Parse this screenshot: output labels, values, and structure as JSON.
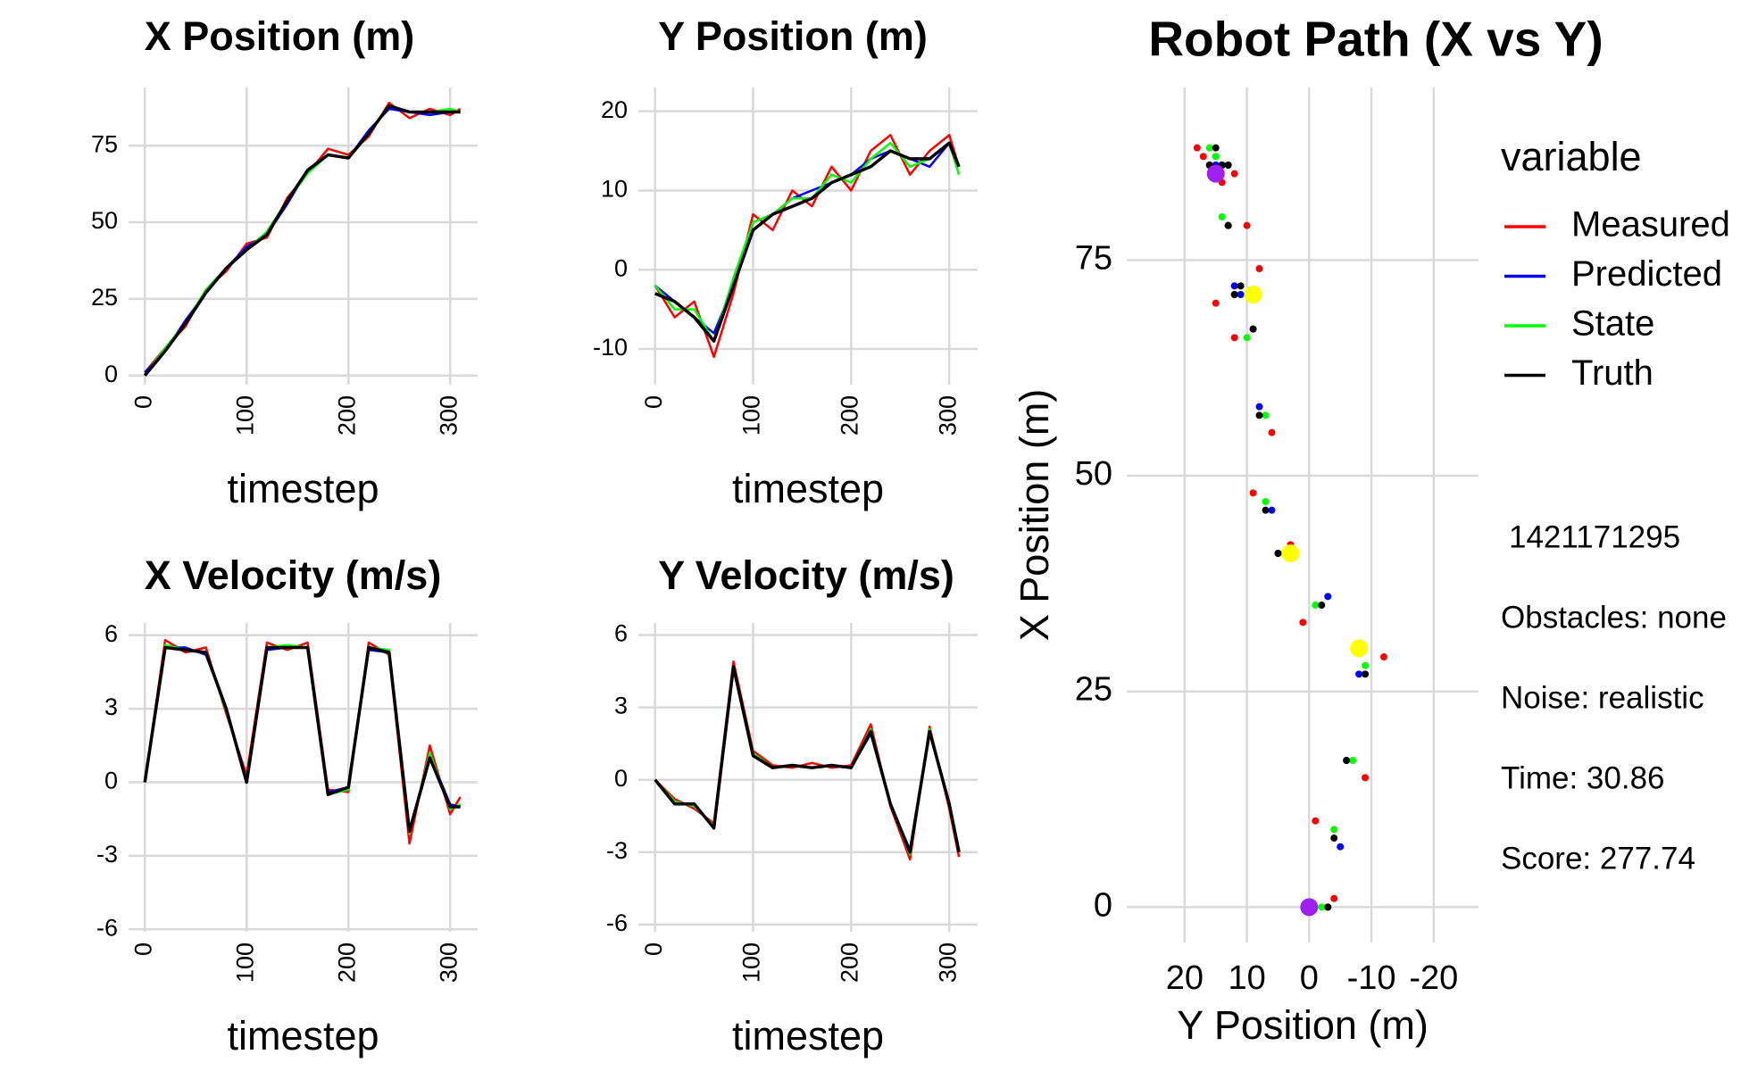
{
  "chart_data": [
    {
      "type": "line",
      "title": "X Position (m)",
      "x_label": "timestep",
      "x": [
        0,
        20,
        40,
        60,
        80,
        100,
        120,
        140,
        160,
        180,
        200,
        220,
        240,
        260,
        280,
        300,
        310
      ],
      "xlim": [
        -16,
        327
      ],
      "xticks": [
        0,
        100,
        200,
        300
      ],
      "ylim": [
        -3,
        94
      ],
      "yticks": [
        0,
        25,
        50,
        75
      ],
      "grid": true,
      "series": [
        {
          "name": "Measured",
          "color": "#ff0000",
          "values": [
            1,
            9,
            16,
            28,
            34,
            43,
            45,
            58,
            66,
            74,
            72,
            78,
            89,
            84,
            87,
            85,
            87
          ]
        },
        {
          "name": "Predicted",
          "color": "#0000ff",
          "values": [
            1,
            8,
            18,
            27,
            35,
            42,
            46,
            56,
            67,
            72,
            71,
            80,
            87,
            86,
            85,
            86,
            86
          ]
        },
        {
          "name": "State",
          "color": "#00ff00",
          "values": [
            0,
            9,
            17,
            28,
            35,
            41,
            47,
            57,
            66,
            72,
            71,
            79,
            88,
            86,
            86,
            87,
            86
          ]
        },
        {
          "name": "Truth",
          "color": "#000000",
          "values": [
            0,
            8,
            17,
            27,
            35,
            41,
            46,
            57,
            67,
            72,
            71,
            79,
            88,
            86,
            86,
            86,
            86
          ]
        }
      ]
    },
    {
      "type": "line",
      "title": "Y Position (m)",
      "x_label": "timestep",
      "x": [
        0,
        20,
        40,
        60,
        80,
        100,
        120,
        140,
        160,
        180,
        200,
        220,
        240,
        260,
        280,
        300,
        310
      ],
      "xlim": [
        -17,
        329
      ],
      "xticks": [
        0,
        100,
        200,
        300
      ],
      "ylim": [
        -14.5,
        23
      ],
      "yticks": [
        -10,
        0,
        10,
        20
      ],
      "grid": true,
      "series": [
        {
          "name": "Measured",
          "color": "#ff0000",
          "values": [
            -2,
            -6,
            -4,
            -11,
            -3,
            7,
            5,
            10,
            8,
            13,
            10,
            15,
            17,
            12,
            15,
            17,
            13
          ]
        },
        {
          "name": "Predicted",
          "color": "#0000ff",
          "values": [
            -2,
            -4,
            -6,
            -8,
            -2,
            6,
            7,
            9,
            10,
            11,
            12,
            14,
            15,
            14,
            13,
            16,
            13
          ]
        },
        {
          "name": "State",
          "color": "#00ff00",
          "values": [
            -2,
            -5,
            -5,
            -9,
            -1,
            6,
            7,
            9,
            9,
            12,
            11,
            14,
            16,
            13,
            14,
            16,
            12
          ]
        },
        {
          "name": "Truth",
          "color": "#000000",
          "values": [
            -3,
            -4,
            -6,
            -9,
            -2,
            5,
            7,
            8,
            9,
            11,
            12,
            13,
            15,
            14,
            14,
            16,
            13
          ]
        }
      ]
    },
    {
      "type": "line",
      "title": "X Velocity (m/s)",
      "x_label": "timestep",
      "x": [
        0,
        20,
        40,
        60,
        80,
        100,
        120,
        140,
        160,
        180,
        200,
        220,
        240,
        260,
        280,
        300,
        310
      ],
      "xlim": [
        -16,
        327
      ],
      "xticks": [
        0,
        100,
        200,
        300
      ],
      "ylim": [
        -6.1,
        6.5
      ],
      "yticks": [
        -6,
        -3,
        0,
        3,
        6
      ],
      "grid": true,
      "series": [
        {
          "name": "Measured",
          "color": "#ff0000",
          "values": [
            0,
            5.8,
            5.3,
            5.5,
            2.8,
            0.3,
            5.7,
            5.4,
            5.7,
            -0.3,
            -0.4,
            5.7,
            5.2,
            -2.5,
            1.5,
            -1.3,
            -0.6
          ]
        },
        {
          "name": "Predicted",
          "color": "#0000ff",
          "values": [
            0,
            5.5,
            5.5,
            5.2,
            3,
            0,
            5.4,
            5.5,
            5.5,
            -0.4,
            -0.2,
            5.4,
            5.3,
            -2,
            1.1,
            -0.9,
            -1
          ]
        },
        {
          "name": "State",
          "color": "#00ff00",
          "values": [
            0,
            5.6,
            5.4,
            5.3,
            2.9,
            0.1,
            5.5,
            5.6,
            5.5,
            -0.5,
            -0.3,
            5.5,
            5.4,
            -2.1,
            1.2,
            -1.1,
            -0.9
          ]
        },
        {
          "name": "Truth",
          "color": "#000000",
          "values": [
            0,
            5.5,
            5.4,
            5.3,
            3,
            0,
            5.5,
            5.5,
            5.5,
            -0.5,
            -0.2,
            5.5,
            5.3,
            -2,
            1,
            -1,
            -1
          ]
        }
      ]
    },
    {
      "type": "line",
      "title": "Y Velocity (m/s)",
      "x_label": "timestep",
      "x": [
        0,
        20,
        40,
        60,
        80,
        100,
        120,
        140,
        160,
        180,
        200,
        220,
        240,
        260,
        280,
        300,
        310
      ],
      "xlim": [
        -17,
        329
      ],
      "xticks": [
        0,
        100,
        200,
        300
      ],
      "ylim": [
        -6.3,
        6.5
      ],
      "yticks": [
        -6,
        -3,
        0,
        3,
        6
      ],
      "grid": true,
      "series": [
        {
          "name": "Measured",
          "color": "#ff0000",
          "values": [
            0,
            -0.8,
            -1.2,
            -1.8,
            4.9,
            1.2,
            0.6,
            0.5,
            0.7,
            0.5,
            0.6,
            2.3,
            -1.1,
            -3.3,
            2.2,
            -1.2,
            -3.2
          ]
        },
        {
          "name": "Predicted",
          "color": "#0000ff",
          "values": [
            0,
            -1,
            -1,
            -2,
            4.6,
            1,
            0.5,
            0.6,
            0.5,
            0.6,
            0.5,
            1.9,
            -1,
            -2.9,
            2,
            -1,
            -2.9
          ]
        },
        {
          "name": "State",
          "color": "#00ff00",
          "values": [
            0,
            -0.9,
            -1.1,
            -1.9,
            4.7,
            1.1,
            0.5,
            0.6,
            0.5,
            0.6,
            0.5,
            2.1,
            -1,
            -3.1,
            2.1,
            -1,
            -3
          ]
        },
        {
          "name": "Truth",
          "color": "#000000",
          "values": [
            0,
            -1,
            -1,
            -2,
            4.7,
            1,
            0.5,
            0.6,
            0.5,
            0.6,
            0.5,
            2,
            -1,
            -3,
            2,
            -1,
            -3
          ]
        }
      ]
    },
    {
      "type": "scatter",
      "title": "Robot Path (X vs Y)",
      "x_label": "Y Position (m)",
      "y_label": "X Position (m)",
      "xlim": [
        29.3,
        -27.2
      ],
      "xticks": [
        20,
        10,
        0,
        -10,
        -20
      ],
      "ylim": [
        -4.1,
        95
      ],
      "yticks": [
        0,
        25,
        50,
        75
      ],
      "grid": true,
      "legend": "right",
      "legend_title": "variable",
      "series": [
        {
          "name": "Measured",
          "color": "#ff0000",
          "x": [
            -4,
            -1,
            -9,
            -12,
            1,
            3,
            9,
            6,
            12,
            8,
            15,
            10,
            18,
            12,
            17,
            14,
            15
          ],
          "y": [
            1,
            10,
            15,
            29,
            33,
            42,
            48,
            55,
            66,
            74,
            70,
            79,
            88,
            85,
            87,
            84,
            86
          ]
        },
        {
          "name": "Predicted",
          "color": "#0000ff",
          "x": [
            -3,
            -5,
            -6,
            -8,
            -3,
            5,
            6,
            8,
            9,
            12,
            11,
            13,
            15,
            14,
            15,
            16,
            14
          ],
          "y": [
            0,
            7,
            17,
            27,
            36,
            41,
            46,
            58,
            67,
            72,
            71,
            79,
            87,
            86,
            86,
            86,
            86
          ]
        },
        {
          "name": "State",
          "color": "#00ff00",
          "x": [
            -2,
            -4,
            -7,
            -9,
            -1,
            4,
            7,
            7,
            10,
            11,
            12,
            14,
            16,
            13,
            14,
            15,
            14
          ],
          "y": [
            0,
            9,
            17,
            28,
            35,
            41,
            47,
            57,
            66,
            72,
            71,
            80,
            88,
            86,
            86,
            87,
            86
          ]
        },
        {
          "name": "Truth",
          "color": "#000000",
          "x": [
            -3,
            -4,
            -6,
            -9,
            -2,
            5,
            7,
            8,
            9,
            11,
            12,
            13,
            15,
            14,
            14,
            16,
            13
          ],
          "y": [
            0,
            8,
            17,
            27,
            35,
            41,
            46,
            57,
            67,
            72,
            71,
            79,
            88,
            86,
            86,
            86,
            86
          ]
        }
      ],
      "highlights": [
        {
          "x": 0,
          "y": 0,
          "color": "#a020f0"
        },
        {
          "x": 15,
          "y": 85,
          "color": "#a020f0"
        },
        {
          "x": 9,
          "y": 71,
          "color": "#ffff00"
        },
        {
          "x": 3,
          "y": 41,
          "color": "#ffff00"
        },
        {
          "x": -8,
          "y": 30,
          "color": "#ffff00"
        }
      ],
      "annotations": [
        "1421171295",
        "Obstacles: none",
        "Noise: realistic",
        "Time: 30.86",
        "Score: 277.74"
      ]
    }
  ]
}
